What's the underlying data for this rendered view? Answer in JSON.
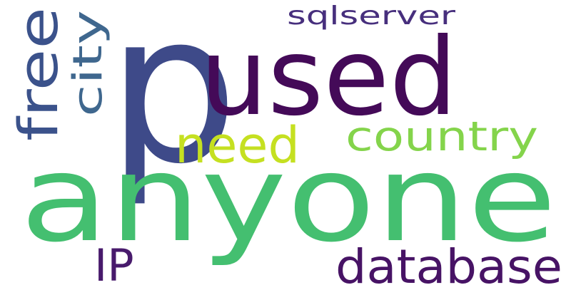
{
  "words": [
    {
      "text": "p",
      "color": "#3e4a89"
    },
    {
      "text": "used",
      "color": "#440a58"
    },
    {
      "text": "anyone",
      "color": "#44bf70"
    },
    {
      "text": "need",
      "color": "#c5e021"
    },
    {
      "text": "country",
      "color": "#84d44b"
    },
    {
      "text": "database",
      "color": "#471365"
    },
    {
      "text": "IP",
      "color": "#481a6c"
    },
    {
      "text": "free",
      "color": "#3b528b"
    },
    {
      "text": "city",
      "color": "#3f678e"
    },
    {
      "text": "sqlserver",
      "color": "#472f7d"
    }
  ]
}
